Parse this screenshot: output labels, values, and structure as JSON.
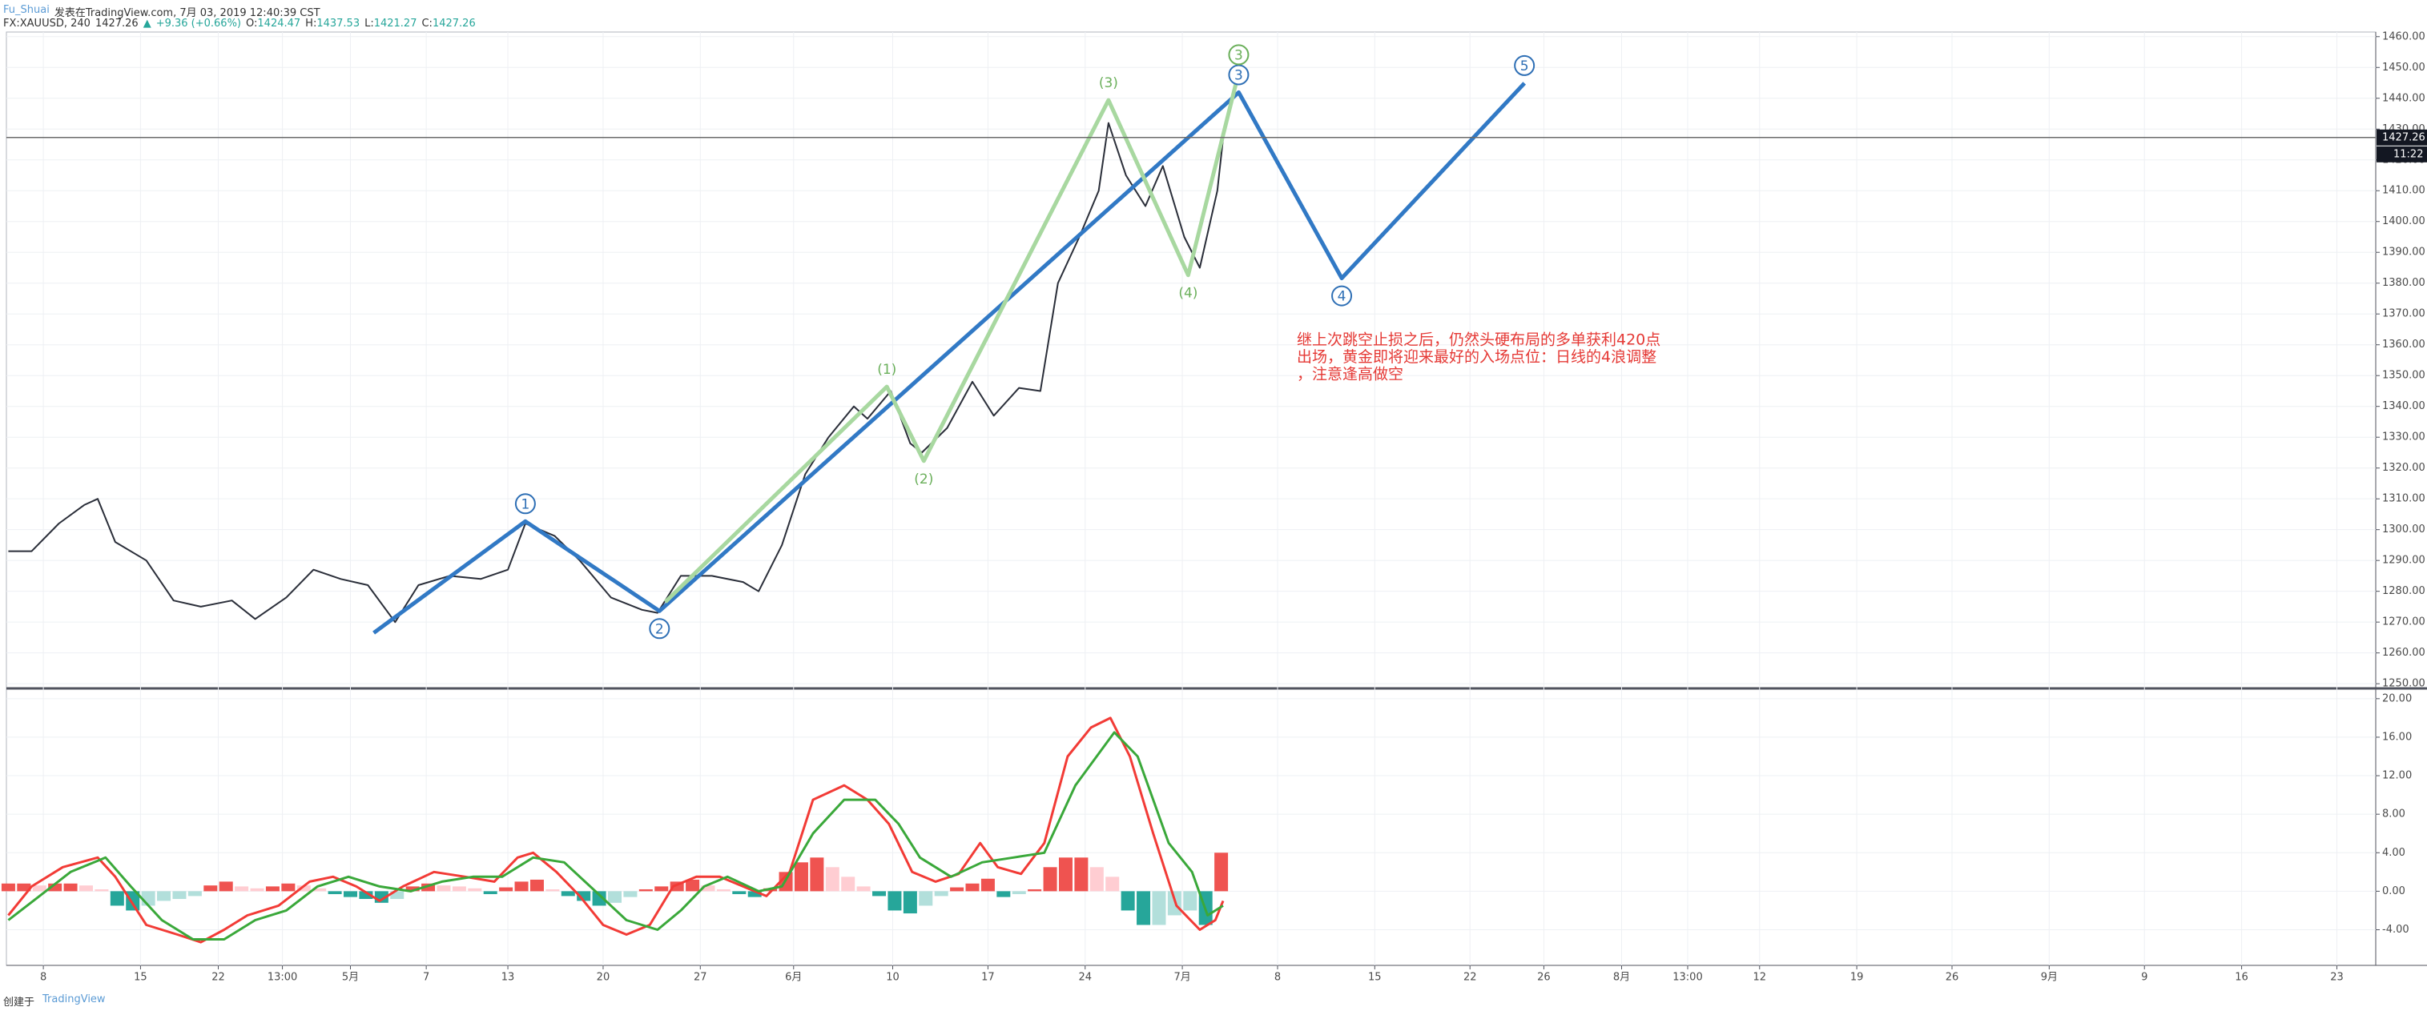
{
  "header": {
    "author": "Fu_Shuai",
    "published": "发表在TradingView.com, 7月 03, 2019 12:40:39 CST",
    "symbol": "FX:XAUUSD, 240",
    "last": 1427.26,
    "arrow": "▲",
    "change": "+9.36 (+0.66%)",
    "ohlc": [
      {
        "key": "O:",
        "value": 1424.47
      },
      {
        "key": "H:",
        "value": 1437.53
      },
      {
        "key": "L:",
        "value": 1421.27
      },
      {
        "key": "C:",
        "value": 1427.26
      }
    ]
  },
  "footer": {
    "created": "创建于",
    "brand": "TradingView"
  },
  "chart_data": [
    {
      "type": "line",
      "xlim": [
        -1.9,
        120
      ],
      "ylim": [
        1249,
        1461.5
      ],
      "grid": true,
      "yticks": [
        {
          "value": 1250,
          "label": "1250.00"
        },
        {
          "value": 1260,
          "label": "1260.00"
        },
        {
          "value": 1270,
          "label": "1270.00"
        },
        {
          "value": 1280,
          "label": "1280.00"
        },
        {
          "value": 1290,
          "label": "1290.00"
        },
        {
          "value": 1300,
          "label": "1300.00"
        },
        {
          "value": 1310,
          "label": "1310.00"
        },
        {
          "value": 1320,
          "label": "1320.00"
        },
        {
          "value": 1330,
          "label": "1330.00"
        },
        {
          "value": 1340,
          "label": "1340.00"
        },
        {
          "value": 1350,
          "label": "1350.00"
        },
        {
          "value": 1360,
          "label": "1360.00"
        },
        {
          "value": 1370,
          "label": "1370.00"
        },
        {
          "value": 1380,
          "label": "1380.00"
        },
        {
          "value": 1390,
          "label": "1390.00"
        },
        {
          "value": 1400,
          "label": "1400.00"
        },
        {
          "value": 1410,
          "label": "1410.00"
        },
        {
          "value": 1420,
          "label": "1420.00"
        },
        {
          "value": 1430,
          "label": "1430.00"
        },
        {
          "value": 1440,
          "label": "1440.00"
        },
        {
          "value": 1450,
          "label": "1450.00"
        },
        {
          "value": 1460,
          "label": "1460.00"
        }
      ],
      "series": [
        {
          "color": "#2a2e39",
          "width": 2,
          "x": [
            -1.8,
            -0.6,
            0.8,
            2.1,
            2.8,
            3.7,
            5.3,
            6.7,
            8.1,
            9.7,
            10.9,
            12.5,
            13.9,
            15.3,
            16.7,
            18.1,
            19.3,
            20.9,
            22.5,
            23.9,
            24.8,
            26.3,
            27.6,
            29.2,
            30.8,
            31.6,
            32.8,
            34.4,
            36.0,
            36.8,
            38.0,
            39.2,
            40.4,
            41.7,
            42.4,
            43.6,
            44.6,
            45.2,
            46.5,
            47.8,
            48.9,
            50.2,
            51.3,
            52.2,
            53.3,
            54.3,
            54.8,
            55.7,
            56.7,
            57.6,
            58.7,
            59.5,
            60.4,
            60.7
          ],
          "values": [
            1293,
            1293,
            1302,
            1308,
            1310,
            1296,
            1290,
            1277,
            1275,
            1277,
            1271,
            1278,
            1287,
            1284,
            1282,
            1270,
            1282,
            1285,
            1284,
            1287,
            1302,
            1298,
            1290,
            1278,
            1274,
            1273,
            1285,
            1285,
            1283,
            1280,
            1295,
            1318,
            1330,
            1340,
            1336,
            1345,
            1328,
            1325,
            1333,
            1348,
            1337,
            1346,
            1345,
            1380,
            1395,
            1410,
            1432,
            1415,
            1405,
            1418,
            1395,
            1385,
            1410,
            1427
          ]
        },
        {
          "color": "#3179c5",
          "width": 5,
          "label_color": "#2e6fb5",
          "x": [
            17.0,
            24.8,
            31.7,
            61.5,
            66.8,
            76.2
          ],
          "values": [
            1266.5,
            1302.7,
            1273.6,
            1441.9,
            1381.6,
            1444.9
          ],
          "labels": [
            null,
            "1",
            "2",
            "3",
            "4",
            "5"
          ]
        },
        {
          "color": "#a8d8a0",
          "width": 5,
          "label_color": "#6aaf5a",
          "x": [
            32.0,
            43.4,
            45.3,
            54.8,
            58.9,
            61.5
          ],
          "values": [
            1276.5,
            1346.4,
            1322.3,
            1439.4,
            1382.6,
            1448.4
          ],
          "labels": [
            null,
            "(1)",
            "(2)",
            "(3)",
            "(4)",
            "3"
          ]
        }
      ],
      "price_line": 1427.26,
      "countdown": "11:22",
      "annotation": [
        "继上次跳空止损之后，仍然头硬布局的多单获利420点",
        "出场，黄金即将迎来最好的入场点位：日线的4浪调整",
        "，注意逢高做空"
      ],
      "annotation_color": "#e53935"
    },
    {
      "type": "line",
      "xlim": [
        -1.9,
        120
      ],
      "ylim": [
        -7.7,
        20.9
      ],
      "grid": true,
      "yticks": [
        {
          "value": -4,
          "label": "-4.00"
        },
        {
          "value": 0,
          "label": "0.00"
        },
        {
          "value": 4,
          "label": "4.00"
        },
        {
          "value": 8,
          "label": "8.00"
        },
        {
          "value": 12,
          "label": "12.00"
        },
        {
          "value": 16,
          "label": "16.00"
        },
        {
          "value": 20,
          "label": "20.00"
        }
      ],
      "xticks": [
        {
          "value": 0,
          "label": "8"
        },
        {
          "value": 5,
          "label": "15"
        },
        {
          "value": 9,
          "label": "22"
        },
        {
          "value": 12.3,
          "label": "13:00"
        },
        {
          "value": 15.8,
          "label": "5月"
        },
        {
          "value": 19.7,
          "label": "7"
        },
        {
          "value": 23.9,
          "label": "13"
        },
        {
          "value": 28.8,
          "label": "20"
        },
        {
          "value": 33.8,
          "label": "27"
        },
        {
          "value": 38.6,
          "label": "6月"
        },
        {
          "value": 43.7,
          "label": "10"
        },
        {
          "value": 48.6,
          "label": "17"
        },
        {
          "value": 53.6,
          "label": "24"
        },
        {
          "value": 58.6,
          "label": "7月"
        },
        {
          "value": 63.5,
          "label": "8"
        },
        {
          "value": 68.5,
          "label": "15"
        },
        {
          "value": 73.4,
          "label": "22"
        },
        {
          "value": 77.2,
          "label": "26"
        },
        {
          "value": 81.2,
          "label": "8月"
        },
        {
          "value": 84.6,
          "label": "13:00"
        },
        {
          "value": 88.3,
          "label": "12"
        },
        {
          "value": 93.3,
          "label": "19"
        },
        {
          "value": 98.2,
          "label": "26"
        },
        {
          "value": 103.2,
          "label": "9月"
        },
        {
          "value": 108.1,
          "label": "9"
        },
        {
          "value": 113.1,
          "label": "16"
        },
        {
          "value": 118.0,
          "label": "23"
        }
      ],
      "histogram": {
        "colors": {
          "pos_up": "#ef5350",
          "pos_down": "#ffcdd2",
          "neg_down": "#26a69a",
          "neg_up": "#b2dfdb"
        },
        "x": [
          -1.8,
          -1.0,
          -0.2,
          0.6,
          1.4,
          2.2,
          3.0,
          3.8,
          4.6,
          5.4,
          6.2,
          7.0,
          7.8,
          8.6,
          9.4,
          10.2,
          11.0,
          11.8,
          12.6,
          13.4,
          14.2,
          15.0,
          15.8,
          16.6,
          17.4,
          18.2,
          19.0,
          19.8,
          20.6,
          21.4,
          22.2,
          23.0,
          23.8,
          24.6,
          25.4,
          26.2,
          27.0,
          27.8,
          28.6,
          29.4,
          30.2,
          31.0,
          31.8,
          32.6,
          33.4,
          34.2,
          35.0,
          35.8,
          36.6,
          37.4,
          38.2,
          39.0,
          39.8,
          40.6,
          41.4,
          42.2,
          43.0,
          43.8,
          44.6,
          45.4,
          46.2,
          47.0,
          47.8,
          48.6,
          49.4,
          50.2,
          51.0,
          51.8,
          52.6,
          53.4,
          54.2,
          55.0,
          55.8,
          56.6,
          57.4,
          58.2,
          59.0,
          59.8,
          60.6
        ],
        "values": [
          0.8,
          0.8,
          0.6,
          0.8,
          0.8,
          0.6,
          0.2,
          -1.5,
          -2,
          -1.5,
          -1,
          -0.8,
          -0.5,
          0.6,
          1,
          0.5,
          0.3,
          0.5,
          0.8,
          0.6,
          0.3,
          -0.3,
          -0.6,
          -0.8,
          -1.2,
          -0.8,
          0.5,
          0.8,
          0.6,
          0.5,
          0.3,
          -0.3,
          0.4,
          1,
          1.2,
          0.2,
          -0.5,
          -1,
          -1.5,
          -1.2,
          -0.6,
          0.2,
          0.5,
          1,
          1.2,
          0.6,
          0.2,
          -0.3,
          -0.6,
          0.3,
          2,
          3,
          3.5,
          2.5,
          1.5,
          0.5,
          -0.5,
          -2,
          -2.3,
          -1.5,
          -0.5,
          0.4,
          0.8,
          1.3,
          -0.6,
          -0.3,
          0.2,
          2.5,
          3.5,
          3.5,
          2.5,
          1.5,
          -2,
          -3.5,
          -3.5,
          -2.5,
          -2,
          -3.5,
          4
        ]
      },
      "series": [
        {
          "color": "#f23b36",
          "width": 3,
          "x": [
            -1.8,
            -0.6,
            1.0,
            2.8,
            3.7,
            5.3,
            6.9,
            8.1,
            9.3,
            10.5,
            12.1,
            13.7,
            14.9,
            16.1,
            17.3,
            18.5,
            20.1,
            21.7,
            23.2,
            24.4,
            25.2,
            26.4,
            27.6,
            28.8,
            30.0,
            31.2,
            32.4,
            33.6,
            34.8,
            36.0,
            37.2,
            38.4,
            39.6,
            41.2,
            42.4,
            43.5,
            44.7,
            45.9,
            47.1,
            48.2,
            49.1,
            50.3,
            51.5,
            52.7,
            53.9,
            54.9,
            55.9,
            57.1,
            58.3,
            59.5,
            60.3,
            60.7
          ],
          "values": [
            -2.5,
            0.5,
            2.5,
            3.5,
            1.5,
            -3.5,
            -4.5,
            -5.3,
            -4,
            -2.5,
            -1.5,
            1,
            1.5,
            0.5,
            -1,
            0.5,
            2,
            1.5,
            1,
            3.5,
            4,
            2,
            -0.5,
            -3.5,
            -4.5,
            -3.5,
            0.5,
            1.5,
            1.5,
            0.5,
            -0.5,
            2,
            9.5,
            11,
            9.5,
            7,
            2,
            1,
            1.8,
            5,
            2.5,
            1.8,
            5,
            14,
            17,
            18,
            14,
            6,
            -1.5,
            -4,
            -3,
            -1
          ]
        },
        {
          "color": "#3aa83a",
          "width": 3,
          "x": [
            -1.8,
            -0.2,
            1.4,
            3.2,
            4.5,
            6.1,
            7.7,
            9.3,
            10.9,
            12.5,
            14.1,
            15.7,
            17.3,
            18.9,
            20.5,
            22.1,
            23.6,
            25.2,
            26.8,
            28.4,
            30.0,
            31.6,
            32.8,
            34.0,
            35.2,
            36.8,
            38.0,
            39.6,
            41.2,
            42.8,
            44.0,
            45.1,
            46.7,
            48.3,
            49.9,
            51.5,
            53.1,
            55.1,
            56.3,
            57.9,
            59.1,
            59.9,
            60.7
          ],
          "values": [
            -3,
            -0.5,
            2,
            3.5,
            0.5,
            -3,
            -5,
            -5,
            -3,
            -2,
            0.5,
            1.5,
            0.5,
            0,
            1,
            1.5,
            1.5,
            3.5,
            3,
            0,
            -3,
            -4,
            -2,
            0.5,
            1.5,
            0,
            0.5,
            6,
            9.5,
            9.5,
            7,
            3.5,
            1.5,
            3,
            3.5,
            4,
            11,
            16.5,
            14,
            5,
            2,
            -2.5,
            -1.5
          ]
        }
      ]
    }
  ]
}
